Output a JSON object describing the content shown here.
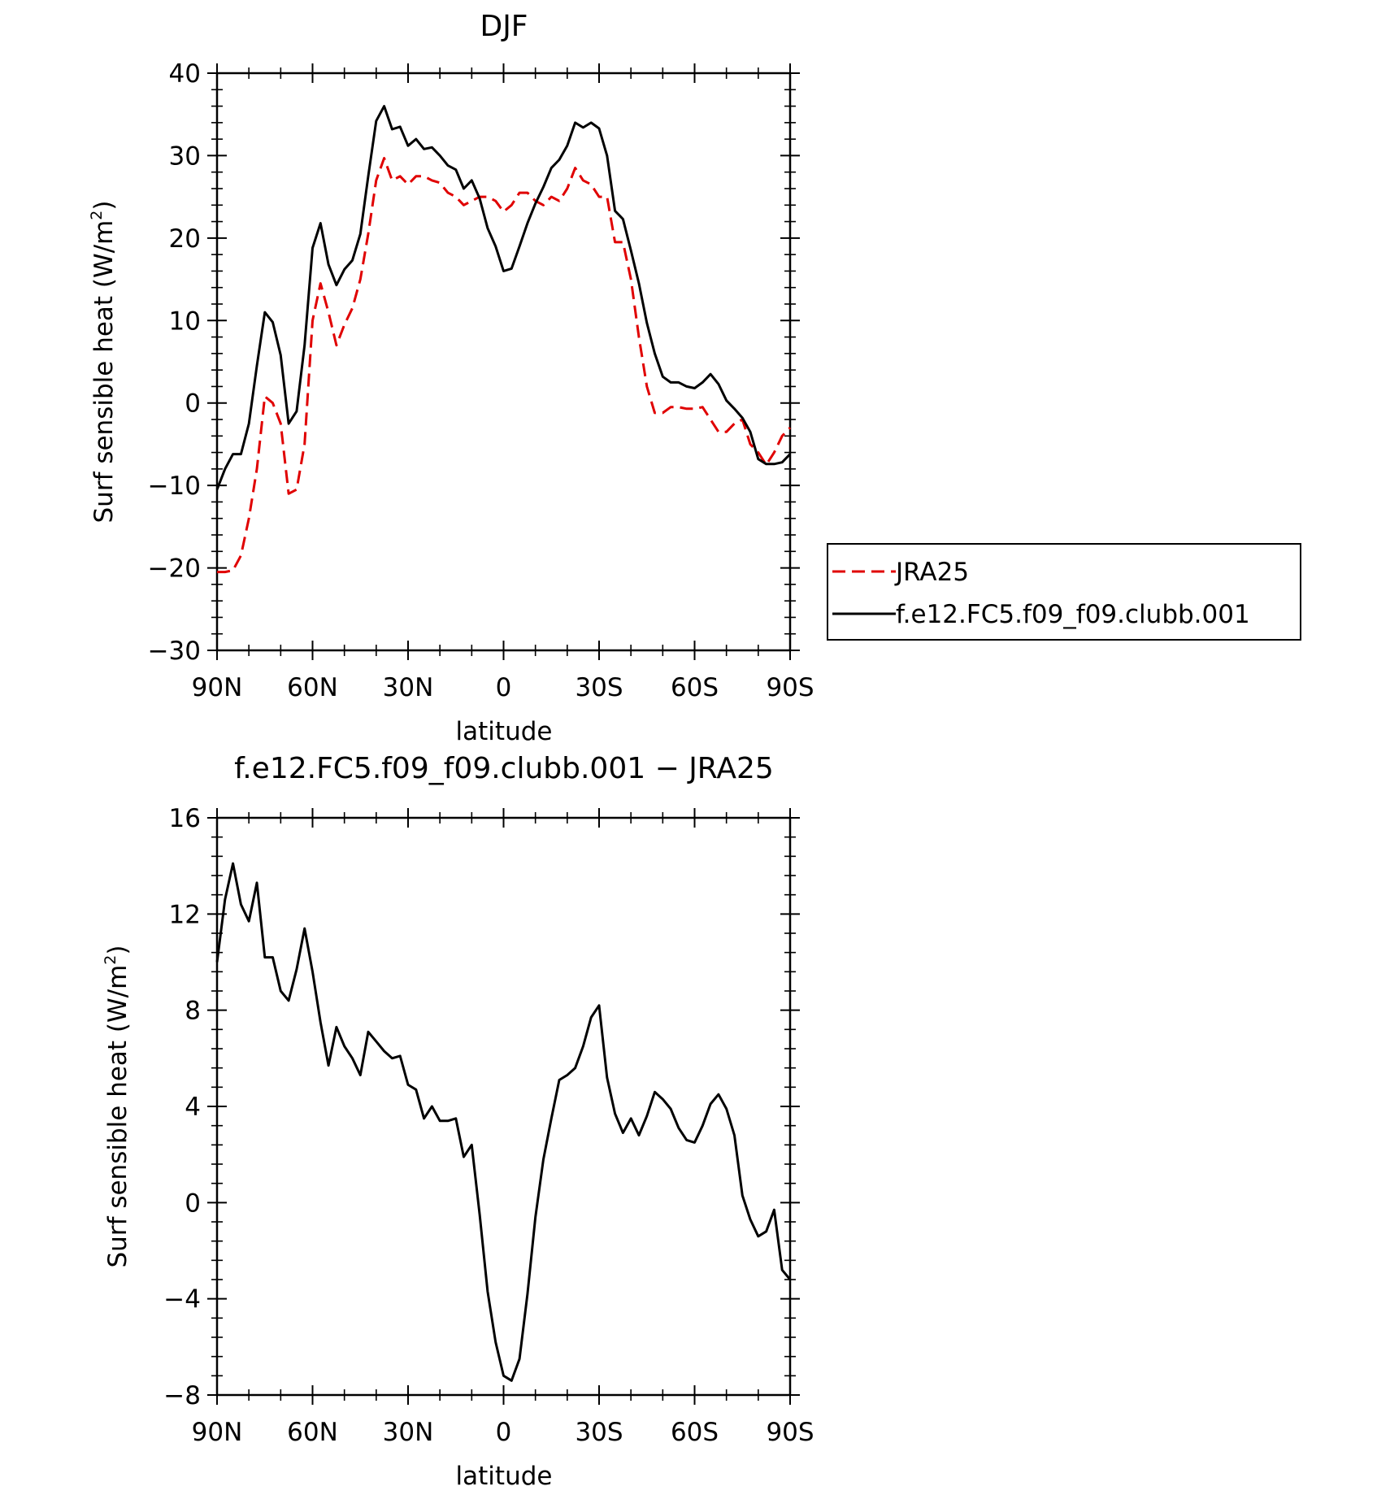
{
  "chart_data": [
    {
      "type": "line",
      "title": "DJF",
      "xlabel": "latitude",
      "ylabel": "Surf sensible heat (W/m²)",
      "ylabel_main": "Surf sensible heat (W/m",
      "ylabel_sup": "2",
      "ylabel_end": ")",
      "xlim": [
        90,
        -90
      ],
      "ylim": [
        -30,
        40
      ],
      "x_ticks": [
        90,
        60,
        30,
        0,
        -30,
        -60,
        -90
      ],
      "x_tick_labels": [
        "90N",
        "60N",
        "30N",
        "0",
        "30S",
        "60S",
        "90S"
      ],
      "y_ticks": [
        -30,
        -20,
        -10,
        0,
        10,
        20,
        30,
        40
      ],
      "y_tick_labels": [
        "−30",
        "−20",
        "−10",
        "0",
        "10",
        "20",
        "30",
        "40"
      ],
      "grid": false,
      "legend_position": "right",
      "series": [
        {
          "name": "JRA25",
          "color": "#e00000",
          "dash": "dashed",
          "x": [
            90,
            87.5,
            85,
            82.5,
            80,
            77.5,
            75,
            72.5,
            70,
            67.5,
            65,
            62.5,
            60,
            57.5,
            55,
            52.5,
            50,
            47.5,
            45,
            42.5,
            40,
            37.5,
            35,
            32.5,
            30,
            27.5,
            25,
            22.5,
            20,
            17.5,
            15,
            12.5,
            10,
            7.5,
            5,
            2.5,
            0,
            -2.5,
            -5,
            -7.5,
            -10,
            -12.5,
            -15,
            -17.5,
            -20,
            -22.5,
            -25,
            -27.5,
            -30,
            -32.5,
            -35,
            -37.5,
            -40,
            -42.5,
            -45,
            -47.5,
            -50,
            -52.5,
            -55,
            -57.5,
            -60,
            -62.5,
            -65,
            -67.5,
            -70,
            -72.5,
            -75,
            -77.5,
            -80,
            -82.5,
            -85,
            -87.5,
            -90
          ],
          "y": [
            -20.5,
            -20.5,
            -20.3,
            -18.5,
            -14,
            -8,
            0.8,
            0,
            -2.5,
            -11,
            -10.5,
            -5,
            10,
            14.5,
            11,
            7,
            9.5,
            11.5,
            15,
            20.5,
            27,
            29.7,
            27,
            27.5,
            26.5,
            27.5,
            27.5,
            27,
            26.7,
            25.5,
            25,
            24,
            24.5,
            25,
            25,
            24.5,
            23.2,
            24,
            25.5,
            25.5,
            24.5,
            24,
            25,
            24.5,
            26,
            28.5,
            27,
            26.5,
            25,
            25,
            19.5,
            19.5,
            15,
            8,
            2,
            -1.2,
            -1.2,
            -0.5,
            -0.5,
            -0.7,
            -0.7,
            -0.5,
            -2,
            -3.5,
            -3.5,
            -2.5,
            -2,
            -5,
            -6,
            -7.5,
            -6,
            -4,
            -3
          ]
        },
        {
          "name": "f.e12.FC5.f09_f09.clubb.001",
          "color": "#000000",
          "dash": "solid",
          "x": [
            90,
            87.5,
            85,
            82.5,
            80,
            77.5,
            75,
            72.5,
            70,
            67.5,
            65,
            62.5,
            60,
            57.5,
            55,
            52.5,
            50,
            47.5,
            45,
            42.5,
            40,
            37.5,
            35,
            32.5,
            30,
            27.5,
            25,
            22.5,
            20,
            17.5,
            15,
            12.5,
            10,
            7.5,
            5,
            2.5,
            0,
            -2.5,
            -5,
            -7.5,
            -10,
            -12.5,
            -15,
            -17.5,
            -20,
            -22.5,
            -25,
            -27.5,
            -30,
            -32.5,
            -35,
            -37.5,
            -40,
            -42.5,
            -45,
            -47.5,
            -50,
            -52.5,
            -55,
            -57.5,
            -60,
            -62.5,
            -65,
            -67.5,
            -70,
            -72.5,
            -75,
            -77.5,
            -80,
            -82.5,
            -85,
            -87.5,
            -90
          ],
          "y": [
            -10.5,
            -8,
            -6.2,
            -6.2,
            -2.5,
            4.5,
            11,
            9.8,
            5.8,
            -2.5,
            -1,
            7,
            18.8,
            21.8,
            16.8,
            14.3,
            16.2,
            17.3,
            20.5,
            27.5,
            34.2,
            36,
            33.2,
            33.5,
            31.2,
            32,
            30.8,
            31,
            30,
            28.8,
            28.3,
            26,
            27,
            24.8,
            21.2,
            19,
            16,
            16.3,
            19,
            21.8,
            24.2,
            26.2,
            28.5,
            29.5,
            31.2,
            34,
            33.4,
            34,
            33.3,
            30,
            23.3,
            22.3,
            18.5,
            14.5,
            9.7,
            6,
            3.2,
            2.5,
            2.5,
            2,
            1.8,
            2.5,
            3.5,
            2.3,
            0.3,
            -0.7,
            -1.8,
            -3.5,
            -6.8,
            -7.4,
            -7.4,
            -7.2,
            -6.2
          ]
        }
      ]
    },
    {
      "type": "line",
      "title": "f.e12.FC5.f09_f09.clubb.001 − JRA25",
      "xlabel": "latitude",
      "ylabel": "Surf sensible heat (W/m²)",
      "ylabel_main": "Surf sensible heat (W/m",
      "ylabel_sup": "2",
      "ylabel_end": ")",
      "xlim": [
        90,
        -90
      ],
      "ylim": [
        -8,
        16
      ],
      "x_ticks": [
        90,
        60,
        30,
        0,
        -30,
        -60,
        -90
      ],
      "x_tick_labels": [
        "90N",
        "60N",
        "30N",
        "0",
        "30S",
        "60S",
        "90S"
      ],
      "y_ticks": [
        -8,
        -4,
        0,
        4,
        8,
        12,
        16
      ],
      "y_tick_labels": [
        "−8",
        "−4",
        "0",
        "4",
        "8",
        "12",
        "16"
      ],
      "grid": false,
      "series": [
        {
          "color": "#000000",
          "dash": "solid",
          "x": [
            90,
            87.5,
            85,
            82.5,
            80,
            77.5,
            75,
            72.5,
            70,
            67.5,
            65,
            62.5,
            60,
            57.5,
            55,
            52.5,
            50,
            47.5,
            45,
            42.5,
            40,
            37.5,
            35,
            32.5,
            30,
            27.5,
            25,
            22.5,
            20,
            17.5,
            15,
            12.5,
            10,
            7.5,
            5,
            2.5,
            0,
            -2.5,
            -5,
            -7.5,
            -10,
            -12.5,
            -15,
            -17.5,
            -20,
            -22.5,
            -25,
            -27.5,
            -30,
            -32.5,
            -35,
            -37.5,
            -40,
            -42.5,
            -45,
            -47.5,
            -50,
            -52.5,
            -55,
            -57.5,
            -60,
            -62.5,
            -65,
            -67.5,
            -70,
            -72.5,
            -75,
            -77.5,
            -80,
            -82.5,
            -85,
            -87.5,
            -90
          ],
          "y": [
            10,
            12.6,
            14.1,
            12.4,
            11.7,
            13.3,
            10.2,
            10.2,
            8.8,
            8.4,
            9.7,
            11.4,
            9.6,
            7.5,
            5.7,
            7.3,
            6.5,
            6,
            5.3,
            7.1,
            6.7,
            6.3,
            6,
            6.1,
            4.9,
            4.7,
            3.5,
            4,
            3.4,
            3.4,
            3.5,
            1.9,
            2.4,
            -0.5,
            -3.7,
            -5.8,
            -7.2,
            -7.4,
            -6.5,
            -3.8,
            -0.6,
            1.8,
            3.5,
            5.1,
            5.3,
            5.6,
            6.5,
            7.7,
            8.2,
            5.2,
            3.7,
            2.9,
            3.5,
            2.8,
            3.6,
            4.6,
            4.3,
            3.9,
            3.1,
            2.6,
            2.5,
            3.2,
            4.1,
            4.5,
            3.9,
            2.8,
            0.3,
            -0.7,
            -1.4,
            -1.2,
            -0.3,
            -2.8,
            -3.2
          ]
        }
      ]
    }
  ]
}
